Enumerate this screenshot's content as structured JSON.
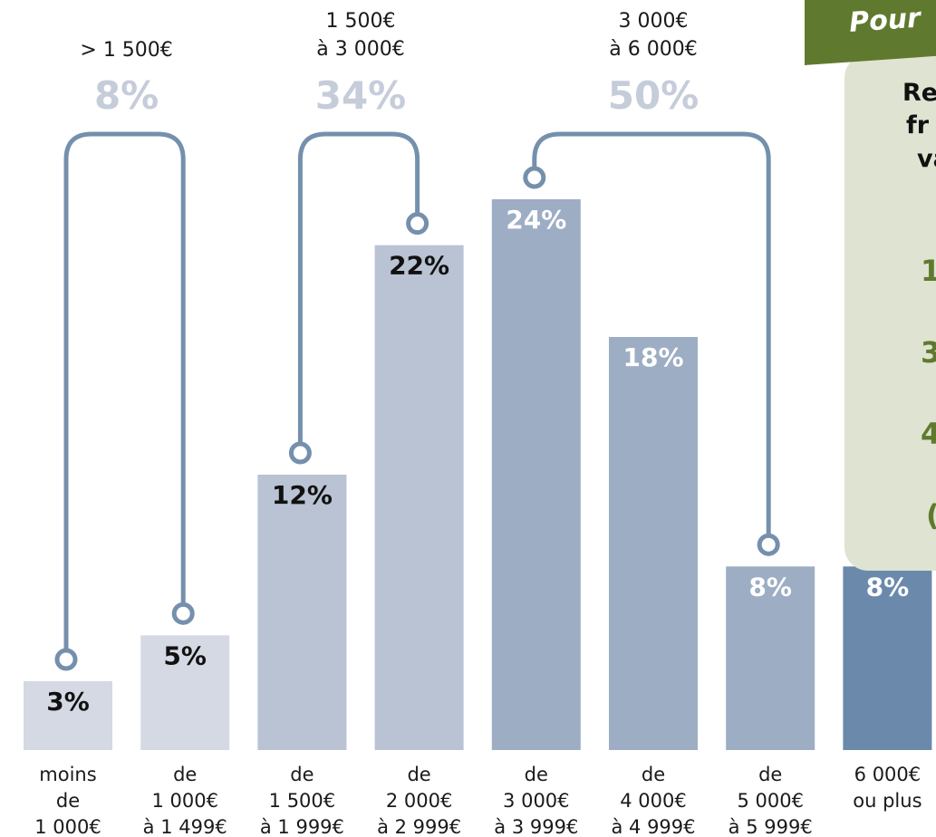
{
  "chart_data": {
    "type": "bar",
    "categories": [
      [
        "moins",
        "de",
        "1 000€"
      ],
      [
        "de",
        "1 000€",
        "à 1 499€"
      ],
      [
        "de",
        "1 500€",
        "à 1 999€"
      ],
      [
        "de",
        "2 000€",
        "à 2 999€"
      ],
      [
        "de",
        "3 000€",
        "à 3 999€"
      ],
      [
        "de",
        "4 000€",
        "à 4 999€"
      ],
      [
        "de",
        "5 000€",
        "à 5 999€"
      ],
      [
        "6 000€",
        "ou plus"
      ]
    ],
    "values": [
      3,
      5,
      12,
      22,
      24,
      18,
      8,
      8
    ],
    "value_labels": [
      "3%",
      "5%",
      "12%",
      "22%",
      "24%",
      "18%",
      "8%",
      "8%"
    ],
    "ylim": [
      0,
      26
    ],
    "grid": false,
    "groups": [
      {
        "label": [
          "> 1 500€"
        ],
        "value_label": "8%",
        "from": 0,
        "to": 1
      },
      {
        "label": [
          "1 500€",
          "à 3 000€"
        ],
        "value_label": "34%",
        "from": 2,
        "to": 3
      },
      {
        "label": [
          "3 000€",
          "à 6 000€"
        ],
        "value_label": "50%",
        "from": 4,
        "to": 6
      }
    ],
    "colors": {
      "bars": [
        "#d4d9e4",
        "#d4d9e4",
        "#b9c3d4",
        "#b9c3d4",
        "#9dadc4",
        "#9dadc4",
        "#9dadc4",
        "#6b8aab"
      ],
      "bracket": "#7590ac",
      "group_label": "#c5ccda",
      "label_dark": "#111111",
      "label_light": "#ffffff"
    }
  },
  "side_panel": {
    "title": "Pour",
    "lines": [
      "Re",
      "fr",
      "va"
    ],
    "numbers": [
      "1",
      "3",
      "4",
      "("
    ],
    "colors": {
      "banner": "#5f7a2e",
      "card": "#dfe3d2"
    }
  }
}
